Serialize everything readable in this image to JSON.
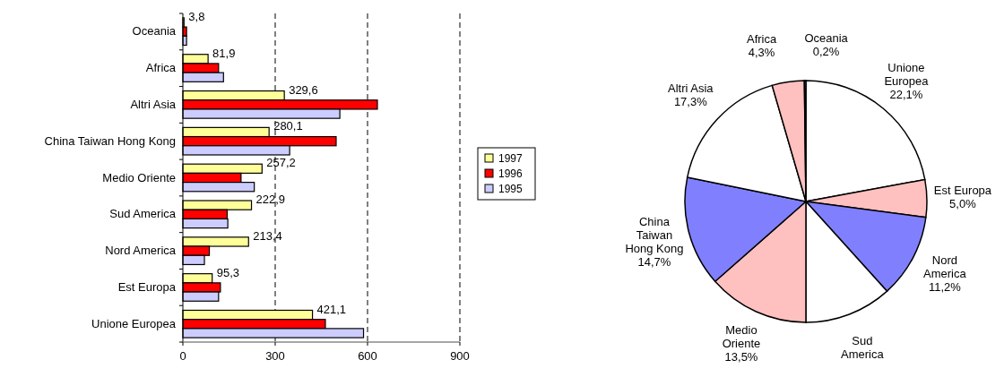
{
  "chart_data": [
    {
      "type": "bar",
      "orientation": "horizontal",
      "categories": [
        "Oceania",
        "Africa",
        "Altri Asia",
        "China Taiwan Hong Kong",
        "Medio Oriente",
        "Sud America",
        "Nord America",
        "Est Europa",
        "Unione Europea"
      ],
      "series": [
        {
          "name": "1997",
          "color": "#ffff99",
          "values": [
            3.8,
            81.9,
            329.6,
            280.1,
            257.2,
            222.9,
            213.4,
            95.3,
            421.1
          ],
          "value_labels": [
            "3,8",
            "81,9",
            "329,6",
            "280,1",
            "257,2",
            "222,9",
            "213,4",
            "95,3",
            "421,1"
          ]
        },
        {
          "name": "1996",
          "color": "#ff0000",
          "values": [
            12,
            116,
            632,
            498,
            189,
            144,
            86,
            122,
            463
          ]
        },
        {
          "name": "1995",
          "color": "#ccccff",
          "values": [
            12,
            132,
            510,
            347,
            232,
            146,
            70,
            116,
            587
          ]
        }
      ],
      "xlim": [
        0,
        900
      ],
      "xticks": [
        0,
        300,
        600,
        900
      ],
      "grid": "x",
      "legend": "right"
    },
    {
      "type": "pie",
      "categories": [
        "Unione Europea",
        "Est Europa",
        "Nord America",
        "Sud America",
        "Medio Oriente",
        "China Taiwan Hong Kong",
        "Altri Asia",
        "Africa",
        "Oceania"
      ],
      "values": [
        22.1,
        5.0,
        11.2,
        11.7,
        13.5,
        14.7,
        17.3,
        4.3,
        0.2
      ],
      "colors": [
        "#ffffff",
        "#ffc0c0",
        "#8080ff",
        "#ffffff",
        "#ffc0c0",
        "#8080ff",
        "#ffffff",
        "#ffc0c0",
        "#8080ff"
      ],
      "value_labels": [
        "22,1%",
        "5,0%",
        "11,2%",
        null,
        "13,5%",
        "14,7%",
        "17,3%",
        "4,3%",
        "0,2%"
      ]
    }
  ]
}
